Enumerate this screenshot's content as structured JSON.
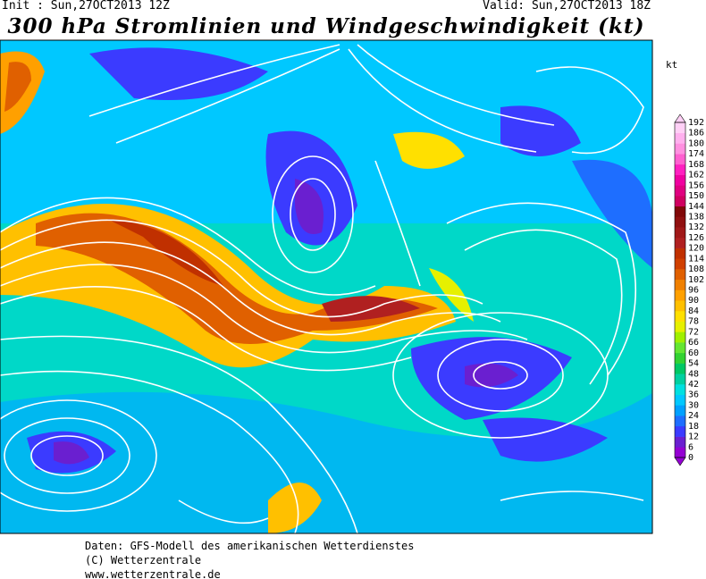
{
  "header": {
    "init": "Init : Sun,27OCT2013 12Z",
    "valid": "Valid: Sun,27OCT2013 18Z"
  },
  "title": "300 hPa Stromlinien und Windgeschwindigkeit (kt)",
  "legend": {
    "unit": "kt",
    "ticks": [
      0,
      6,
      12,
      18,
      24,
      30,
      36,
      42,
      48,
      54,
      60,
      66,
      72,
      78,
      84,
      90,
      96,
      102,
      108,
      114,
      120,
      126,
      132,
      138,
      144,
      150,
      156,
      162,
      168,
      174,
      180,
      186,
      192
    ],
    "colors": [
      "#9400d3",
      "#6a1fd0",
      "#3b3bff",
      "#1e6eff",
      "#00a0ff",
      "#00c8ff",
      "#00e0e0",
      "#00d0a0",
      "#00c864",
      "#32d232",
      "#64e632",
      "#a0f000",
      "#e6f000",
      "#ffe000",
      "#ffc000",
      "#ffa000",
      "#f08000",
      "#e06000",
      "#d04000",
      "#c03000",
      "#b02020",
      "#a01818",
      "#901010",
      "#800808",
      "#d00060",
      "#e00080",
      "#f000a0",
      "#ff20c0",
      "#ff60d0",
      "#ff90e0",
      "#ffb0ee",
      "#ffd0f6"
    ]
  },
  "footer": [
    "Daten: GFS-Modell des amerikanischen Wetterdienstes",
    "(C) Wetterzentrale",
    "www.wetterzentrale.de"
  ]
}
